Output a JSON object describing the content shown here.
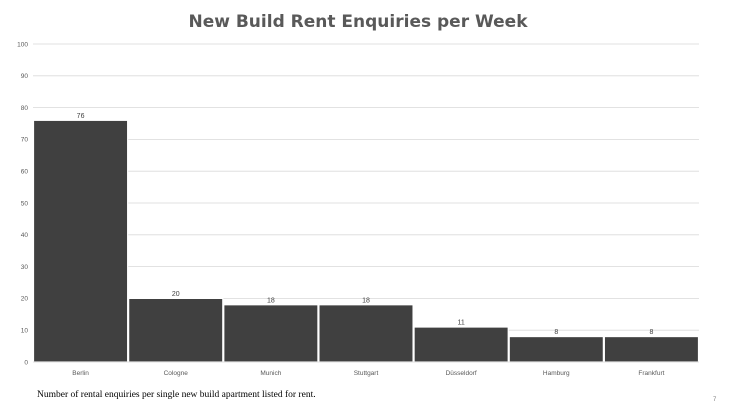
{
  "page": {
    "caption": "Number of rental enquiries per single new build apartment listed for rent.",
    "page_number": "7"
  },
  "colors": {
    "bar_fill": "#404040",
    "bar_stroke": "#ffffff",
    "grid": "#d9d9d9",
    "title": "#595959"
  },
  "chart_data": {
    "type": "bar",
    "title": "New Build Rent Enquiries per Week",
    "xlabel": "",
    "ylabel": "",
    "categories": [
      "Berlin",
      "Cologne",
      "Munich",
      "Stuttgart",
      "Düsseldorf",
      "Hamburg",
      "Frankfurt"
    ],
    "values": [
      76,
      20,
      18,
      18,
      11,
      8,
      8
    ],
    "data_labels": [
      "76",
      "20",
      "18",
      "18",
      "11",
      "8",
      "8"
    ],
    "ylim": [
      0,
      100
    ],
    "yticks": [
      0,
      10,
      20,
      30,
      40,
      50,
      60,
      70,
      80,
      90,
      100
    ],
    "grid": true,
    "legend": "none"
  }
}
